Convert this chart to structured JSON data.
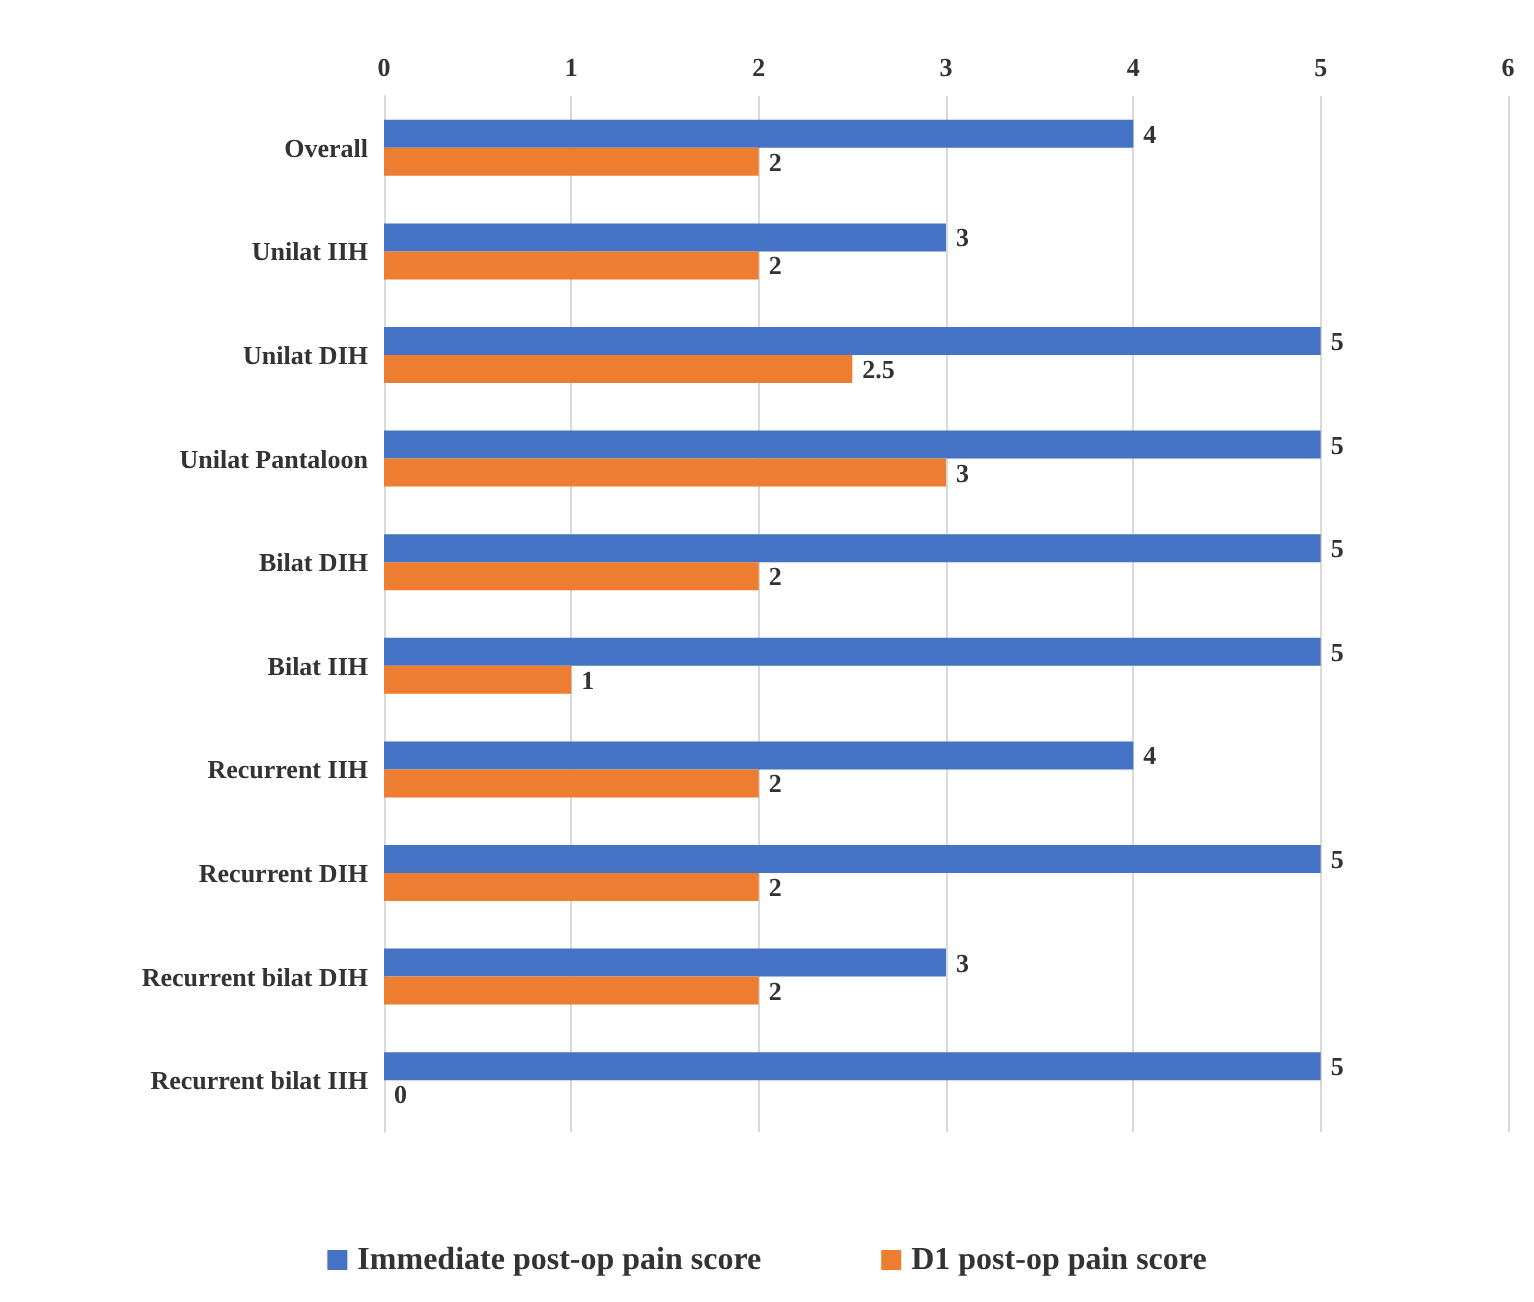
{
  "chart_data": {
    "type": "bar",
    "orientation": "horizontal",
    "categories": [
      "Overall",
      "Unilat IIH",
      "Unilat DIH",
      "Unilat Pantaloon",
      "Bilat DIH",
      "Bilat IIH",
      "Recurrent IIH",
      "Recurrent DIH",
      "Recurrent bilat DIH",
      "Recurrent bilat IIH"
    ],
    "series": [
      {
        "name": "Immediate post-op pain score",
        "color": "#4472c4",
        "values": [
          4,
          3,
          5,
          5,
          5,
          5,
          4,
          5,
          3,
          5
        ]
      },
      {
        "name": "D1 post-op pain score",
        "color": "#ed7d31",
        "values": [
          2,
          2,
          2.5,
          3,
          2,
          1,
          2,
          2,
          2,
          0
        ]
      }
    ],
    "xlim": [
      0,
      6
    ],
    "xticks": [
      0,
      1,
      2,
      3,
      4,
      5,
      6
    ],
    "grid": "x",
    "legend": "bottom",
    "data_labels": true
  }
}
